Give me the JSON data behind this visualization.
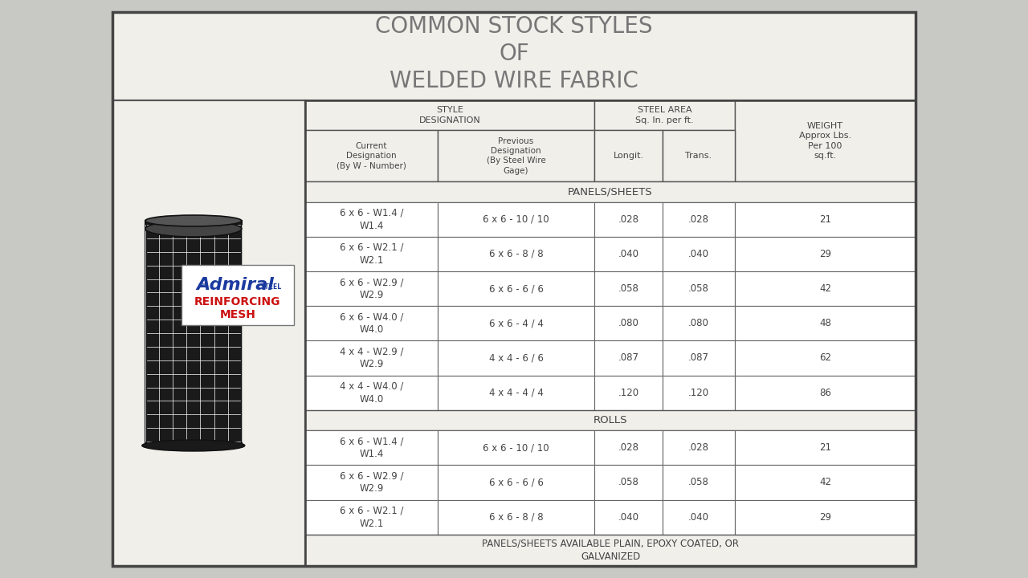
{
  "title_line1": "COMMON STOCK STYLES",
  "title_line2": "OF",
  "title_line3": "WELDED WIRE FABRIC",
  "bg_color": "#c8c8c4",
  "card_bg": "#f0efea",
  "border_color": "#555555",
  "text_color": "#555555",
  "admiral_blue": "#1a3a9e",
  "reinforcing_red": "#cc1111",
  "panels_sheets_rows": [
    [
      "6 x 6 - W1.4 /\nW1.4",
      "6 x 6 - 10 / 10",
      ".028",
      ".028",
      "21"
    ],
    [
      "6 x 6 - W2.1 /\nW2.1",
      "6 x 6 - 8 / 8",
      ".040",
      ".040",
      "29"
    ],
    [
      "6 x 6 - W2.9 /\nW2.9",
      "6 x 6 - 6 / 6",
      ".058",
      ".058",
      "42"
    ],
    [
      "6 x 6 - W4.0 /\nW4.0",
      "6 x 6 - 4 / 4",
      ".080",
      ".080",
      "48"
    ],
    [
      "4 x 4 - W2.9 /\nW2.9",
      "4 x 4 - 6 / 6",
      ".087",
      ".087",
      "62"
    ],
    [
      "4 x 4 - W4.0 /\nW4.0",
      "4 x 4 - 4 / 4",
      ".120",
      ".120",
      "86"
    ]
  ],
  "rolls_rows": [
    [
      "6 x 6 - W1.4 /\nW1.4",
      "6 x 6 - 10 / 10",
      ".028",
      ".028",
      "21"
    ],
    [
      "6 x 6 - W2.9 /\nW2.9",
      "6 x 6 - 6 / 6",
      ".058",
      ".058",
      "42"
    ],
    [
      "6 x 6 - W2.1 /\nW2.1",
      "6 x 6 - 8 / 8",
      ".040",
      ".040",
      "29"
    ]
  ],
  "footer_text": "PANELS/SHEETS AVAILABLE PLAIN, EPOXY COATED, OR\nGALVANIZED"
}
